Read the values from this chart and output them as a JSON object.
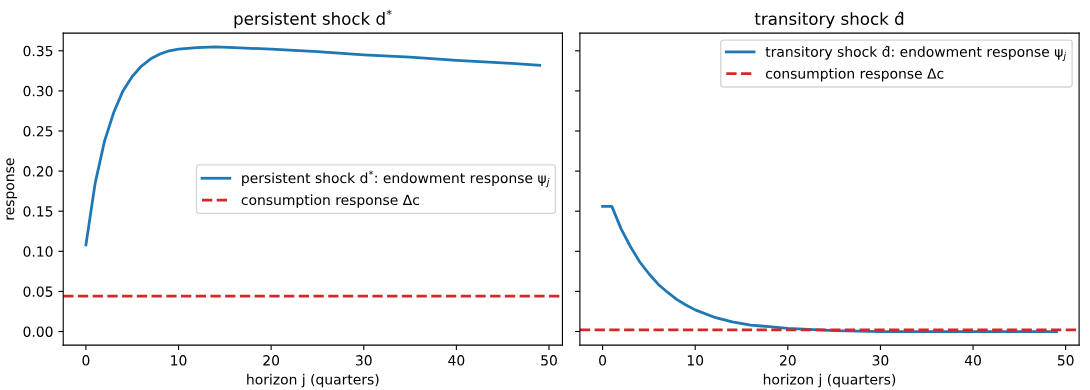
{
  "chart_data": [
    {
      "type": "line",
      "title": "persistent shock d$^{*}$",
      "xlabel": "horizon j (quarters)",
      "ylabel": "response",
      "xlim": [
        -2.45,
        51.45
      ],
      "xticks": [
        0,
        10,
        20,
        30,
        40,
        50
      ],
      "ylim": [
        -0.017,
        0.372
      ],
      "yticks": [
        {
          "value": 0,
          "label": "0.00"
        },
        0.05,
        {
          "value": 0.1,
          "label": "0.10"
        },
        0.15,
        {
          "value": 0.2,
          "label": "0.20"
        },
        0.25,
        {
          "value": 0.3,
          "label": "0.30"
        },
        0.35
      ],
      "legend": "center right",
      "grid": false,
      "series": [
        {
          "name": "persistent shock d$^{*}$: endowment response ψ$_{j}$",
          "color": "#1f77b4",
          "x": [
            0,
            1,
            2,
            3,
            4,
            5,
            6,
            7,
            8,
            9,
            10,
            12,
            14,
            16,
            20,
            25,
            30,
            35,
            40,
            45,
            49
          ],
          "values": [
            0.108,
            0.185,
            0.237,
            0.273,
            0.3,
            0.318,
            0.331,
            0.34,
            0.346,
            0.35,
            0.352,
            0.354,
            0.355,
            0.354,
            0.352,
            0.349,
            0.345,
            0.342,
            0.338,
            0.335,
            0.332
          ]
        }
      ],
      "ref_lines": [
        {
          "axis": "y",
          "value": 0.044,
          "label": "consumption response Δc",
          "color": "#d62728",
          "line_style": "dashed"
        }
      ]
    },
    {
      "type": "line",
      "title": "transitory shock d̂",
      "xlabel": "horizon j (quarters)",
      "xlim": [
        -2.45,
        51.45
      ],
      "xticks": [
        0,
        10,
        20,
        30,
        40,
        50
      ],
      "ylim": [
        -0.017,
        0.372
      ],
      "tick_labels": "x",
      "legend": "upper right",
      "grid": false,
      "yticks": [
        0,
        0.05,
        0.1,
        0.15,
        0.2,
        0.25,
        0.3,
        0.35
      ],
      "series": [
        {
          "name": "transitory shock d̂: endowment response ψ$_{j}$",
          "color": "#1f77b4",
          "x": [
            0,
            1,
            2,
            3,
            4,
            5,
            6,
            7,
            8,
            9,
            10,
            12,
            14,
            16,
            18,
            20,
            25,
            30,
            35,
            40,
            45,
            49
          ],
          "values": [
            0.156,
            0.156,
            0.128,
            0.106,
            0.087,
            0.072,
            0.059,
            0.049,
            0.04,
            0.033,
            0.027,
            0.018,
            0.012,
            0.008,
            0.006,
            0.004,
            0.001,
            0.0,
            0.0,
            0.0,
            0.0,
            0.0
          ]
        }
      ],
      "ref_lines": [
        {
          "axis": "y",
          "value": 0.002,
          "label": "consumption response Δc",
          "color": "#d62728",
          "line_style": "dashed"
        }
      ]
    }
  ]
}
